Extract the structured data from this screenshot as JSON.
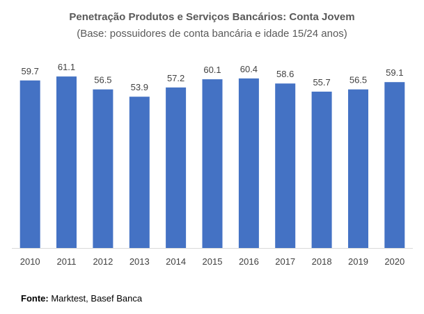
{
  "chart_data": {
    "type": "bar",
    "title": "Penetração Produtos e Serviços Bancários: Conta Jovem",
    "subtitle": "(Base: possuidores de conta bancária e idade 15/24 anos)",
    "categories": [
      "2010",
      "2011",
      "2012",
      "2013",
      "2014",
      "2015",
      "2016",
      "2017",
      "2018",
      "2019",
      "2020"
    ],
    "values": [
      59.7,
      61.1,
      56.5,
      53.9,
      57.2,
      60.1,
      60.4,
      58.6,
      55.7,
      56.5,
      59.1
    ],
    "value_labels": [
      "59.7",
      "61.1",
      "56.5",
      "53.9",
      "57.2",
      "60.1",
      "60.4",
      "58.6",
      "55.7",
      "56.5",
      "59.1"
    ],
    "xlabel": "",
    "ylabel": "",
    "ylim": [
      0,
      63.6
    ],
    "grid": false,
    "bar_color": "#4472C4",
    "label_color": "#404040",
    "axis_color": "#D9D9D9"
  },
  "footer": {
    "source_label": "Fonte:",
    "source_text": " Marktest, Basef Banca"
  }
}
